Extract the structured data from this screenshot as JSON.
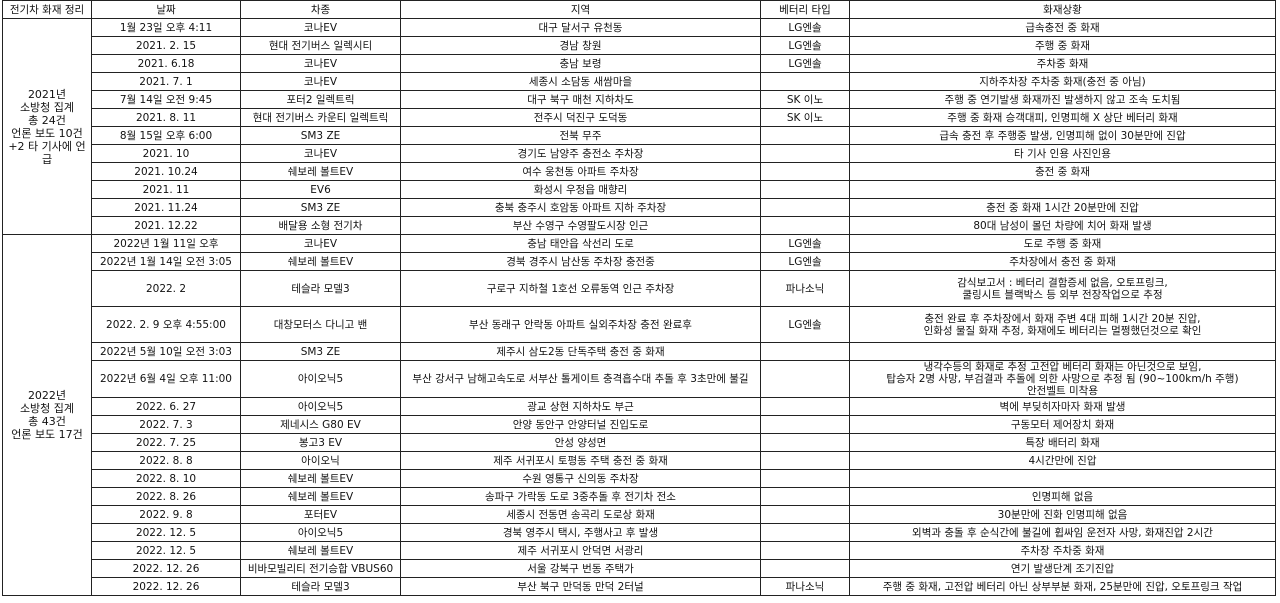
{
  "headers": [
    "전기차 화재 정리",
    "날짜",
    "차종",
    "지역",
    "베터리 타입",
    "화재상황"
  ],
  "groups": [
    {
      "label_lines": [
        "2021년",
        "소방청 집계",
        "총 24건",
        "언론 보도 10건",
        "+2 타 기사에 언급"
      ],
      "rows": [
        {
          "date": "1월 23일 오후 4:11",
          "car": "코나EV",
          "region": "대구 달서구 유천동",
          "battery": "LG엔솔",
          "fire": [
            "급속충전 중 화재"
          ]
        },
        {
          "date": "2021. 2. 15",
          "car": "현대 전기버스 일렉시티",
          "region": "경남 창원",
          "battery": "LG엔솔",
          "fire": [
            "주행 중 화재"
          ]
        },
        {
          "date": "2021. 6.18",
          "car": "코나EV",
          "region": "충남 보령",
          "battery": "LG엔솔",
          "fire": [
            "주차중 화재"
          ]
        },
        {
          "date": "2021. 7. 1",
          "car": "코나EV",
          "region": "세종시 소담동 새쌈마을",
          "battery": "",
          "fire": [
            "지하주차장 주차중 화재(충전 중 아님)"
          ]
        },
        {
          "date": "7월 14일 오전 9:45",
          "car": "포터2 일렉트릭",
          "region": "대구 북구 매천 지하차도",
          "battery": "SK 이노",
          "fire": [
            "주행 중 연기발생 화재까진 발생하지 않고 조속 도치됨"
          ]
        },
        {
          "date": "2021. 8. 11",
          "car": "현대 전기버스 카운티 일렉트릭",
          "region": "전주시 덕진구 도덕동",
          "battery": "SK 이노",
          "fire": [
            "주행 중 화재 승객대피, 인명피해 X 상단 베터리 화재"
          ]
        },
        {
          "date": "8월 15일 오후 6:00",
          "car": "SM3 ZE",
          "region": "전북 무주",
          "battery": "",
          "fire": [
            "급속 충전 후 주행중 발생, 인명피해 없이 30분만에 진압"
          ]
        },
        {
          "date": "2021. 10",
          "car": "코나EV",
          "region": "경기도 남양주 충전소 주차장",
          "battery": "",
          "fire": [
            "타 기사 인용 사진인용"
          ]
        },
        {
          "date": "2021. 10.24",
          "car": "쉐보레 볼트EV",
          "region": "여수 웅천동 아파트 주차장",
          "battery": "",
          "fire": [
            "충전 중 화재"
          ]
        },
        {
          "date": "2021. 11",
          "car": "EV6",
          "region": "화성시 우정읍 매향리",
          "battery": "",
          "fire": [
            ""
          ]
        },
        {
          "date": "2021. 11.24",
          "car": "SM3 ZE",
          "region": "충북 충주시 호암동 아파트 지하 주차장",
          "battery": "",
          "fire": [
            "충전 중 화재 1시간 20분만에 진압"
          ]
        },
        {
          "date": "2021. 12.22",
          "car": "배달용 소형 전기차",
          "region": "부산 수영구 수영팔도시장 인근",
          "battery": "",
          "fire": [
            "80대 남성이 몰던 차량에 치어 화재 발생"
          ]
        }
      ]
    },
    {
      "label_lines": [
        "2022년",
        "소방청 집계",
        "총 43건",
        "언론 보도 17건"
      ],
      "rows": [
        {
          "date": "2022년 1월 11일 오후",
          "car": "코나EV",
          "region": "충남 태안읍 삭선리 도로",
          "battery": "LG엔솔",
          "fire": [
            "도로 주행 중 화재"
          ]
        },
        {
          "date": "2022년 1월 14일 오전 3:05",
          "car": "쉐보레 볼트EV",
          "region": "경북 경주시 남산동 주차장 충전중",
          "battery": "LG엔솔",
          "fire": [
            "주차장에서 충전 중 화재"
          ]
        },
        {
          "date": "2022. 2",
          "car": "테슬라 모델3",
          "region": "구로구 지하철 1호선 오류동역 인근 주차장",
          "battery": "파나소닉",
          "fire": [
            "감식보고서 : 베터리 결함증세 없음, 오토프링크,",
            "쿨링시트 블랙박스 등 외부 전장작업으로 추정"
          ]
        },
        {
          "date": "2022. 2. 9 오후 4:55:00",
          "car": "대창모터스 다니고 밴",
          "region": "부산 동래구 안락동 아파트 실외주차장 충전 완료후",
          "battery": "LG엔솔",
          "fire": [
            "충전 완료 후 주차장에서 화재 주변 4대 피해 1시간 20분 진압,",
            "인화성 물질 화재 추정, 화재에도 베터리는 멀쩡했던것으로 확인"
          ]
        },
        {
          "date": "2022년 5월 10일 오전 3:03",
          "car": "SM3 ZE",
          "region": "제주시 삼도2동 단독주택 충전 중 화재",
          "battery": "",
          "fire": [
            ""
          ]
        },
        {
          "date": "2022년 6월 4일 오후 11:00",
          "car": "아이오닉5",
          "region": "부산 강서구 남해고속도로 서부산 톨게이트 충격흡수대 추돌 후 3초만에 불길",
          "battery": "",
          "fire": [
            "냉각수등의 화재로 추정 고전압 베터리 화재는 아닌것으로 보임,",
            "탑승자 2명 사망, 부검결과 추돌에 의한 사망으로 추정 됨 (90~100km/h 주행)",
            "안전벨트 미착용"
          ]
        },
        {
          "date": "2022. 6. 27",
          "car": "아이오닉5",
          "region": "광교 상현 지하차도 부근",
          "battery": "",
          "fire": [
            "벽에 부딪히자마자 화재 발생"
          ]
        },
        {
          "date": "2022. 7. 3",
          "car": "제네시스 G80 EV",
          "region": "안양 동안구 안양터널 진입도로",
          "battery": "",
          "fire": [
            "구동모터 제어장치 화재"
          ]
        },
        {
          "date": "2022. 7. 25",
          "car": "봉고3 EV",
          "region": "안성 양성면",
          "battery": "",
          "fire": [
            "특장 배터리 화재"
          ]
        },
        {
          "date": "2022. 8. 8",
          "car": "아이오닉",
          "region": "제주 서귀포시 토평동 주택 충전 중 화재",
          "battery": "",
          "fire": [
            "4시간만에 진압"
          ]
        },
        {
          "date": "2022. 8. 10",
          "car": "쉐보레 볼트EV",
          "region": "수원 영통구 신의동 주차장",
          "battery": "",
          "fire": [
            ""
          ]
        },
        {
          "date": "2022. 8. 26",
          "car": "쉐보레 볼트EV",
          "region": "송파구 가락동 도로 3중추돌 후 전기차 전소",
          "battery": "",
          "fire": [
            "인명피해 없음"
          ]
        },
        {
          "date": "2022. 9. 8",
          "car": "포터EV",
          "region": "세종시 전동면 송곡리 도로상 화재",
          "battery": "",
          "fire": [
            "30분만에 진화 인명피해 없음"
          ]
        },
        {
          "date": "2022. 12. 5",
          "car": "아이오닉5",
          "region": "경북 영주시 택시, 주행사고 후 발생",
          "battery": "",
          "fire": [
            "외벽과 충돌 후 순식간에 불길에 휩싸임 운전자 사망, 화재진압 2시간"
          ]
        },
        {
          "date": "2022. 12. 5",
          "car": "쉐보레 볼트EV",
          "region": "제주 서귀포시 안덕면 서광리",
          "battery": "",
          "fire": [
            "주차장 주차중 화재"
          ]
        },
        {
          "date": "2022. 12. 26",
          "car": "비바모빌리티 전기승합 VBUS60",
          "region": "서울 강북구 번동 주택가",
          "battery": "",
          "fire": [
            "연기 발생단계 조기진압"
          ]
        },
        {
          "date": "2022. 12. 26",
          "car": "테슬라 모델3",
          "region": "부산 북구 만덕동 만덕 2터널",
          "battery": "파나소닉",
          "fire": [
            "주행 중 화재, 고전압 베터리 아닌 상부부분 화재, 25분만에 진압, 오토프링크 작업"
          ]
        }
      ]
    }
  ]
}
